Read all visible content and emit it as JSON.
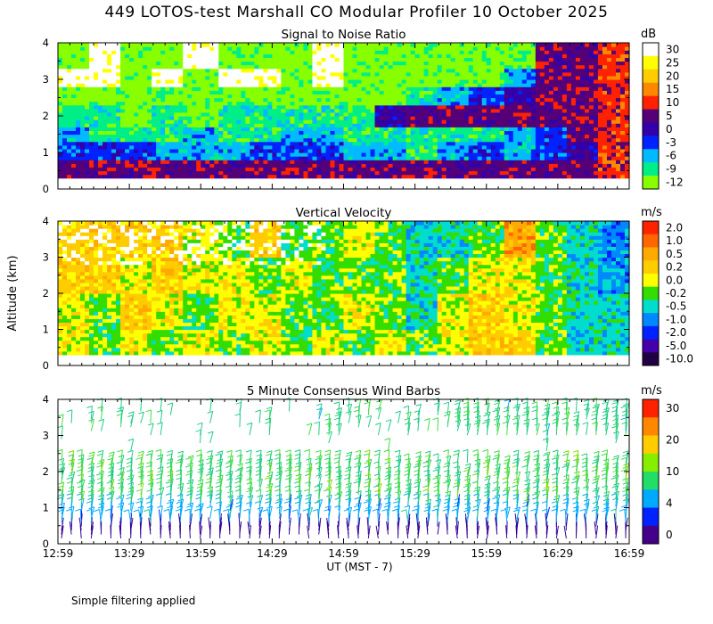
{
  "title": "449 LOTOS-test Marshall CO Modular Profiler 10 October 2025",
  "footnote": "Simple filtering applied",
  "ylabel": "Altitude (km)",
  "xlabel": "UT  (MST - 7)",
  "chart_data": [
    {
      "type": "heatmap",
      "title": "Signal to Noise Ratio",
      "colorbar_unit": "dB",
      "colorbar_ticks": [
        "30",
        "25",
        "20",
        "15",
        "10",
        "5",
        "0",
        "-3",
        "-6",
        "-9",
        "-12"
      ],
      "colorbar_colors": [
        "#ffffff",
        "#ffff00",
        "#ffcc00",
        "#ff8800",
        "#ff2200",
        "#550077",
        "#3300aa",
        "#0022ff",
        "#00bbff",
        "#00ee88",
        "#88ff00"
      ],
      "yticks": [
        "4",
        "3",
        "2",
        "1",
        "0"
      ],
      "ylim": [
        0,
        4
      ],
      "data_ylim": [
        0.3,
        4.0
      ],
      "rows_summary": [
        {
          "altitude_km": 0.5,
          "snr_db": [
            5,
            5,
            5,
            5,
            5,
            5,
            5,
            5,
            5,
            5,
            5,
            5,
            5,
            5,
            5,
            5,
            5,
            10
          ]
        },
        {
          "altitude_km": 1.0,
          "snr_db": [
            -3,
            -3,
            -3,
            -6,
            -6,
            -6,
            -3,
            -3,
            -3,
            -6,
            -6,
            -9,
            -6,
            -3,
            -6,
            -3,
            0,
            10
          ]
        },
        {
          "altitude_km": 1.5,
          "snr_db": [
            -6,
            -9,
            -9,
            -9,
            -6,
            -9,
            -9,
            -6,
            -6,
            -9,
            -9,
            -9,
            -9,
            -9,
            -6,
            -3,
            5,
            10
          ]
        },
        {
          "altitude_km": 2.0,
          "snr_db": [
            -9,
            -9,
            -12,
            -9,
            -12,
            -9,
            -9,
            -9,
            -9,
            -9,
            0,
            5,
            5,
            5,
            5,
            5,
            5,
            10
          ]
        },
        {
          "altitude_km": 2.5,
          "snr_db": [
            -12,
            -12,
            -12,
            -12,
            -12,
            -12,
            -12,
            -12,
            -12,
            -12,
            -12,
            -9,
            -6,
            -3,
            0,
            5,
            5,
            10
          ]
        },
        {
          "altitude_km": 3.0,
          "snr_db": [
            30,
            30,
            -12,
            30,
            -12,
            30,
            30,
            -12,
            30,
            -12,
            -12,
            -12,
            -12,
            -12,
            -6,
            5,
            5,
            10
          ]
        },
        {
          "altitude_km": 3.5,
          "snr_db": [
            -12,
            30,
            -12,
            -12,
            30,
            -12,
            -12,
            -12,
            30,
            -12,
            -12,
            -12,
            -12,
            -12,
            -12,
            5,
            5,
            10
          ]
        }
      ]
    },
    {
      "type": "heatmap",
      "title": "Vertical Velocity",
      "colorbar_unit": "m/s",
      "colorbar_ticks": [
        "2.0",
        "1.0",
        "0.5",
        "0.2",
        "0.0",
        "-0.2",
        "-0.5",
        "-1.0",
        "-2.0",
        "-5.0",
        "-10.0"
      ],
      "colorbar_colors": [
        "#ff2200",
        "#ff6600",
        "#ffaa00",
        "#ffcc00",
        "#ffff00",
        "#33dd00",
        "#00ddcc",
        "#0088ff",
        "#0022ff",
        "#4400aa",
        "#220044"
      ],
      "yticks": [
        "4",
        "3",
        "2",
        "1",
        "0"
      ],
      "ylim": [
        0,
        4
      ],
      "data_ylim": [
        0.3,
        4.0
      ],
      "rows_summary": [
        {
          "altitude_km": 0.5,
          "w_ms": [
            0.0,
            -0.2,
            0.0,
            -0.2,
            0.0,
            -0.2,
            0.0,
            -0.2,
            0.0,
            -0.2,
            0.0,
            -0.2,
            0.0,
            0.2,
            0.2,
            -0.2,
            -0.5,
            -0.5
          ]
        },
        {
          "altitude_km": 1.5,
          "w_ms": [
            0.0,
            -0.2,
            0.2,
            0.0,
            -0.2,
            0.0,
            0.0,
            -0.2,
            -0.2,
            0.0,
            -0.2,
            -0.5,
            0.0,
            0.2,
            0.0,
            -0.2,
            -0.5,
            -0.5
          ]
        },
        {
          "altitude_km": 2.5,
          "w_ms": [
            0.2,
            0.2,
            0.0,
            0.2,
            0.0,
            0.0,
            -0.2,
            0.0,
            -0.2,
            -0.2,
            -0.2,
            -0.5,
            -0.2,
            0.0,
            0.0,
            -0.2,
            -0.5,
            -1.0
          ]
        },
        {
          "altitude_km": 3.5,
          "w_ms": [
            0.2,
            0.2,
            0.2,
            0.2,
            0.0,
            -0.2,
            0.2,
            -0.2,
            -0.2,
            0.0,
            -0.2,
            -0.5,
            -0.5,
            -0.2,
            0.5,
            -0.2,
            -0.5,
            -1.0
          ]
        }
      ]
    },
    {
      "type": "scatter",
      "title": "5 Minute Consensus Wind Barbs",
      "colorbar_unit": "m/s",
      "colorbar_ticks": [
        "30",
        "20",
        "10",
        "4",
        "0"
      ],
      "colorbar_colors": [
        "#ff2200",
        "#ff8800",
        "#ffcc00",
        "#88ee00",
        "#22dd66",
        "#00aaff",
        "#0022ff",
        "#440088"
      ],
      "yticks": [
        "4",
        "3",
        "2",
        "1",
        "0"
      ],
      "ylim": [
        0,
        4
      ],
      "speed_ms_by_altitude": [
        {
          "altitude_km": 0.3,
          "speed_ms": 1
        },
        {
          "altitude_km": 0.8,
          "speed_ms": 4
        },
        {
          "altitude_km": 1.3,
          "speed_ms": 8
        },
        {
          "altitude_km": 2.0,
          "speed_ms": 8
        },
        {
          "altitude_km": 3.2,
          "speed_ms": 7
        }
      ]
    }
  ],
  "xticks": [
    "12:59",
    "13:29",
    "13:59",
    "14:29",
    "14:59",
    "15:29",
    "15:59",
    "16:29",
    "16:59"
  ]
}
